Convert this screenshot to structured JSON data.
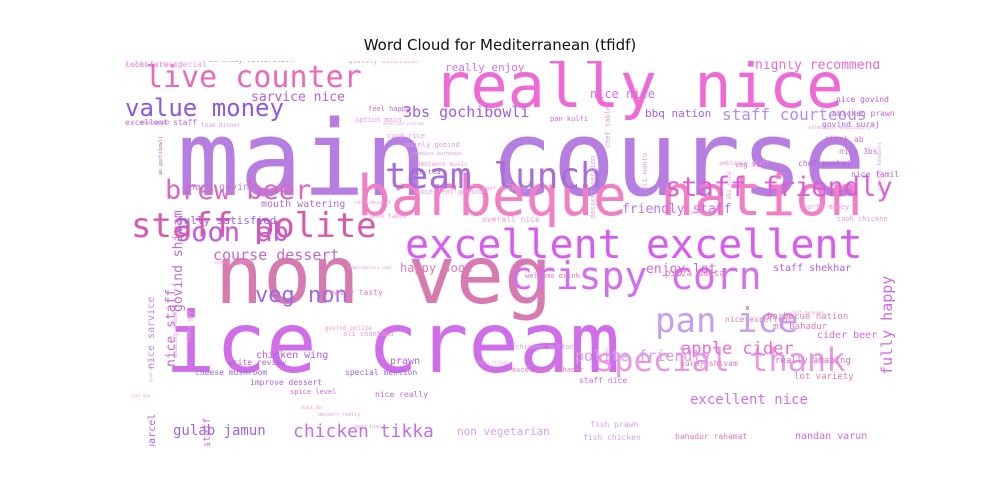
{
  "chart_data": {
    "type": "wordcloud",
    "title": "Word Cloud for Mediterranean (tfidf)",
    "words": [
      {
        "text": "main course",
        "weight": 100,
        "color": "#b57ee0"
      },
      {
        "text": "ice cream",
        "weight": 86,
        "color": "#cf6ee8"
      },
      {
        "text": "non veg",
        "weight": 80,
        "color": "#d77ab0"
      },
      {
        "text": "really nice",
        "weight": 64,
        "color": "#f06ad6"
      },
      {
        "text": "barbeque nation",
        "weight": 56,
        "color": "#f27fc4"
      },
      {
        "text": "excellent excellent",
        "weight": 40,
        "color": "#d85cf0"
      },
      {
        "text": "crispy corn",
        "weight": 38,
        "color": "#d26ef0"
      },
      {
        "text": "team lunch",
        "weight": 36,
        "color": "#a86ed8"
      },
      {
        "text": "staff polite",
        "weight": 34,
        "color": "#d957ad"
      },
      {
        "text": "pan ice",
        "weight": 34,
        "color": "#c79ef0"
      },
      {
        "text": "special thank",
        "weight": 32,
        "color": "#e79ae0"
      },
      {
        "text": "live counter",
        "weight": 30,
        "color": "#e86ab8"
      },
      {
        "text": "brew beer",
        "weight": 27,
        "color": "#d868c0"
      },
      {
        "text": "staff friendly",
        "weight": 27,
        "color": "#d860d6"
      },
      {
        "text": "soon ab",
        "weight": 27,
        "color": "#c45cd4"
      },
      {
        "text": "value money",
        "weight": 24,
        "color": "#8e57e0"
      },
      {
        "text": "veg non",
        "weight": 22,
        "color": "#9b6ae8"
      },
      {
        "text": "chicken tikka",
        "weight": 18,
        "color": "#c66ee8"
      },
      {
        "text": "apple cider",
        "weight": 17,
        "color": "#e86ad6"
      },
      {
        "text": "staff courteous",
        "weight": 16,
        "color": "#b58ee8"
      },
      {
        "text": "3bs gochibowli",
        "weight": 15,
        "color": "#9e5ae8"
      },
      {
        "text": "course dessert",
        "weight": 15,
        "color": "#c768d0"
      },
      {
        "text": "polite friendly",
        "weight": 15,
        "color": "#d59ef0"
      },
      {
        "text": "fully happy",
        "weight": 15,
        "color": "#d06ad8"
      },
      {
        "text": "excellent nice",
        "weight": 14,
        "color": "#d56ee8"
      },
      {
        "text": "gulab jamun",
        "weight": 14,
        "color": "#9e62e8"
      },
      {
        "text": "highly recommend",
        "weight": 13,
        "color": "#e86ad6"
      },
      {
        "text": "sarvice nice",
        "weight": 13,
        "color": "#b060e0"
      },
      {
        "text": "friendly staff",
        "weight": 13,
        "color": "#c66ee8"
      },
      {
        "text": "enjoy lot",
        "weight": 13,
        "color": "#d06ad8"
      },
      {
        "text": "happy soon",
        "weight": 12,
        "color": "#e07ab8"
      },
      {
        "text": "nice staff",
        "weight": 13,
        "color": "#c768d0"
      },
      {
        "text": "govind shivam",
        "weight": 13,
        "color": "#c768d0"
      },
      {
        "text": "nice nice",
        "weight": 12,
        "color": "#d56ee8"
      },
      {
        "text": "really enjoy",
        "weight": 11,
        "color": "#d56ee8"
      },
      {
        "text": "bbq nation",
        "weight": 11,
        "color": "#9e62e8"
      },
      {
        "text": "fully satisfied",
        "weight": 11,
        "color": "#9e62e8"
      },
      {
        "text": "mouth watering",
        "weight": 10,
        "color": "#a86ed8"
      },
      {
        "text": "thank govind",
        "weight": 10,
        "color": "#b57ee0"
      },
      {
        "text": "chicken wing",
        "weight": 10,
        "color": "#b060e0"
      },
      {
        "text": "cider beer",
        "weight": 10,
        "color": "#d06ad8"
      },
      {
        "text": "staff shekhar",
        "weight": 10,
        "color": "#b060e0"
      },
      {
        "text": "non vegetarian",
        "weight": 11,
        "color": "#d59ef0"
      },
      {
        "text": "nandan varun",
        "weight": 10,
        "color": "#d06ad8"
      },
      {
        "text": "prawn",
        "weight": 10,
        "color": "#b060e0"
      },
      {
        "text": "nice sarvice",
        "weight": 10,
        "color": "#b58ee8"
      },
      {
        "text": "burmese parcel",
        "weight": 10,
        "color": "#b060e0"
      },
      {
        "text": "courteous staff",
        "weight": 10,
        "color": "#c768d0"
      },
      {
        "text": "pizza pasta",
        "weight": 9,
        "color": "#e07ab8"
      },
      {
        "text": "barbecue nation",
        "weight": 9,
        "color": "#e07ab8"
      },
      {
        "text": "mr bahadur",
        "weight": 9,
        "color": "#e07ab8"
      },
      {
        "text": "really amazing",
        "weight": 9,
        "color": "#d06ad8"
      },
      {
        "text": "lot variety",
        "weight": 8,
        "color": "#e07ab8"
      },
      {
        "text": "thank ab",
        "weight": 8,
        "color": "#d06ad8"
      },
      {
        "text": "nice 3bs",
        "weight": 8,
        "color": "#d06ad8"
      },
      {
        "text": "nice family",
        "weight": 8,
        "color": "#b060e0"
      },
      {
        "text": "chicken prawn",
        "weight": 8,
        "color": "#c768d0"
      },
      {
        "text": "govind suraj",
        "weight": 8,
        "color": "#b060e0"
      },
      {
        "text": "nice govind",
        "weight": 8,
        "color": "#b060e0"
      },
      {
        "text": "chef pankaj",
        "weight": 8,
        "color": "#b060e0"
      },
      {
        "text": "excellent staff",
        "weight": 8,
        "color": "#c768d0"
      },
      {
        "text": "cheese mushroom",
        "weight": 8,
        "color": "#9e62e8"
      },
      {
        "text": "special mention",
        "weight": 8,
        "color": "#9e62e8"
      },
      {
        "text": "fish chicken",
        "weight": 8,
        "color": "#d59ef0"
      },
      {
        "text": "fish prawn",
        "weight": 8,
        "color": "#d59ef0"
      },
      {
        "text": "staff nice",
        "weight": 8,
        "color": "#d06ad8"
      },
      {
        "text": "bahadur rahamat",
        "weight": 8,
        "color": "#e07ab8"
      },
      {
        "text": "suraj shivam",
        "weight": 8,
        "color": "#e07ab8"
      },
      {
        "text": "nice excellent",
        "weight": 8,
        "color": "#e07ab8"
      },
      {
        "text": "chicken mutton",
        "weight": 7,
        "color": "#d59ef0"
      },
      {
        "text": "excellent bahadur",
        "weight": 7,
        "color": "#e07ab8"
      },
      {
        "text": "write review",
        "weight": 8,
        "color": "#b060e0"
      },
      {
        "text": "improve dessert",
        "weight": 8,
        "color": "#b060e0"
      },
      {
        "text": "overall nice",
        "weight": 8,
        "color": "#e79ae0"
      },
      {
        "text": "nice really",
        "weight": 8,
        "color": "#c768d0"
      },
      {
        "text": "really tasty",
        "weight": 8,
        "color": "#e07ab8"
      },
      {
        "text": "feel happy",
        "weight": 7,
        "color": "#c768d0"
      },
      {
        "text": "birthday celebration",
        "weight": 7,
        "color": "#e07ab8"
      },
      {
        "text": "quality excellent",
        "weight": 7,
        "color": "#e79ae0"
      },
      {
        "text": "option main",
        "weight": 7,
        "color": "#e79ae0"
      },
      {
        "text": "curd rice",
        "weight": 7,
        "color": "#e79ae0"
      },
      {
        "text": "mainly gobind",
        "weight": 7,
        "color": "#e79ae0"
      },
      {
        "text": "ice tea",
        "weight": 7,
        "color": "#9e62e8"
      },
      {
        "text": "excellent govind",
        "weight": 7,
        "color": "#e79ae0"
      },
      {
        "text": "welcome drink",
        "weight": 7,
        "color": "#e07ab8"
      },
      {
        "text": "spice level",
        "weight": 7,
        "color": "#d06ad8"
      },
      {
        "text": "ali shantanu",
        "weight": 7,
        "color": "#e79ae0"
      },
      {
        "text": "pan kulfi",
        "weight": 7,
        "color": "#d06ad8"
      },
      {
        "text": "veg veg",
        "weight": 7,
        "color": "#d06ad8"
      },
      {
        "text": "worth money",
        "weight": 7,
        "color": "#e79ae0"
      },
      {
        "text": "cook chicken",
        "weight": 7,
        "color": "#e79ae0"
      },
      {
        "text": "govind polite",
        "weight": 7,
        "color": "#e79ae0"
      },
      {
        "text": "book table",
        "weight": 6,
        "color": "#e79ae0"
      },
      {
        "text": "beer amazing",
        "weight": 6,
        "color": "#e79ae0"
      },
      {
        "text": "ambiance music",
        "weight": 6,
        "color": "#e79ae0"
      },
      {
        "text": "team dinner",
        "weight": 6,
        "color": "#e79ae0"
      },
      {
        "text": "nice dessert",
        "weight": 6,
        "color": "#e79ae0"
      },
      {
        "text": "compare barbeque",
        "weight": 5,
        "color": "#e79ae0"
      },
      {
        "text": "chicken tandoori",
        "weight": 5,
        "color": "#e79ae0"
      },
      {
        "text": "attentive hospitality",
        "weight": 5,
        "color": "#e79ae0"
      },
      {
        "text": "really friendly",
        "weight": 5,
        "color": "#e79ae0"
      },
      {
        "text": "beer btw",
        "weight": 4,
        "color": "#e79ae0"
      },
      {
        "text": "dessert really",
        "weight": 4,
        "color": "#e79ae0"
      },
      {
        "text": "thank 3bs",
        "weight": 5,
        "color": "#e79ae0"
      },
      {
        "text": "chef table",
        "weight": 5,
        "color": "#e79ae0"
      },
      {
        "text": "dessert section",
        "weight": 4,
        "color": "#e79ae0"
      },
      {
        "text": "ali mantu",
        "weight": 7,
        "color": "#e79ae0"
      },
      {
        "text": "ambiance staff",
        "weight": 7,
        "color": "#e79ae0"
      },
      {
        "text": "3bs nice",
        "weight": 7,
        "color": "#e79ae0"
      },
      {
        "text": "course option",
        "weight": 6,
        "color": "#e79ae0"
      },
      {
        "text": "amazing shank",
        "weight": 6,
        "color": "#e79ae0"
      },
      {
        "text": "thank guy",
        "weight": 5,
        "color": "#e79ae0"
      },
      {
        "text": "ab gochibowli",
        "weight": 6,
        "color": "#b060e0"
      },
      {
        "text": "nice hangout",
        "weight": 6,
        "color": "#b060e0"
      },
      {
        "text": "excellent provide",
        "weight": 5,
        "color": "#e79ae0"
      },
      {
        "text": "complimentary cake",
        "weight": 4,
        "color": "#e79ae0"
      },
      {
        "text": "beer white",
        "weight": 4,
        "color": "#e79ae0"
      },
      {
        "text": "staff barbeque",
        "weight": 4,
        "color": "#e79ae0"
      },
      {
        "text": "good grill",
        "weight": 4,
        "color": "#e79ae0"
      },
      {
        "text": "cool guy",
        "weight": 4,
        "color": "#e79ae0"
      },
      {
        "text": "celebrate special",
        "weight": 4,
        "color": "#e79ae0"
      },
      {
        "text": "look forward",
        "weight": 4,
        "color": "#e79ae0"
      }
    ]
  }
}
